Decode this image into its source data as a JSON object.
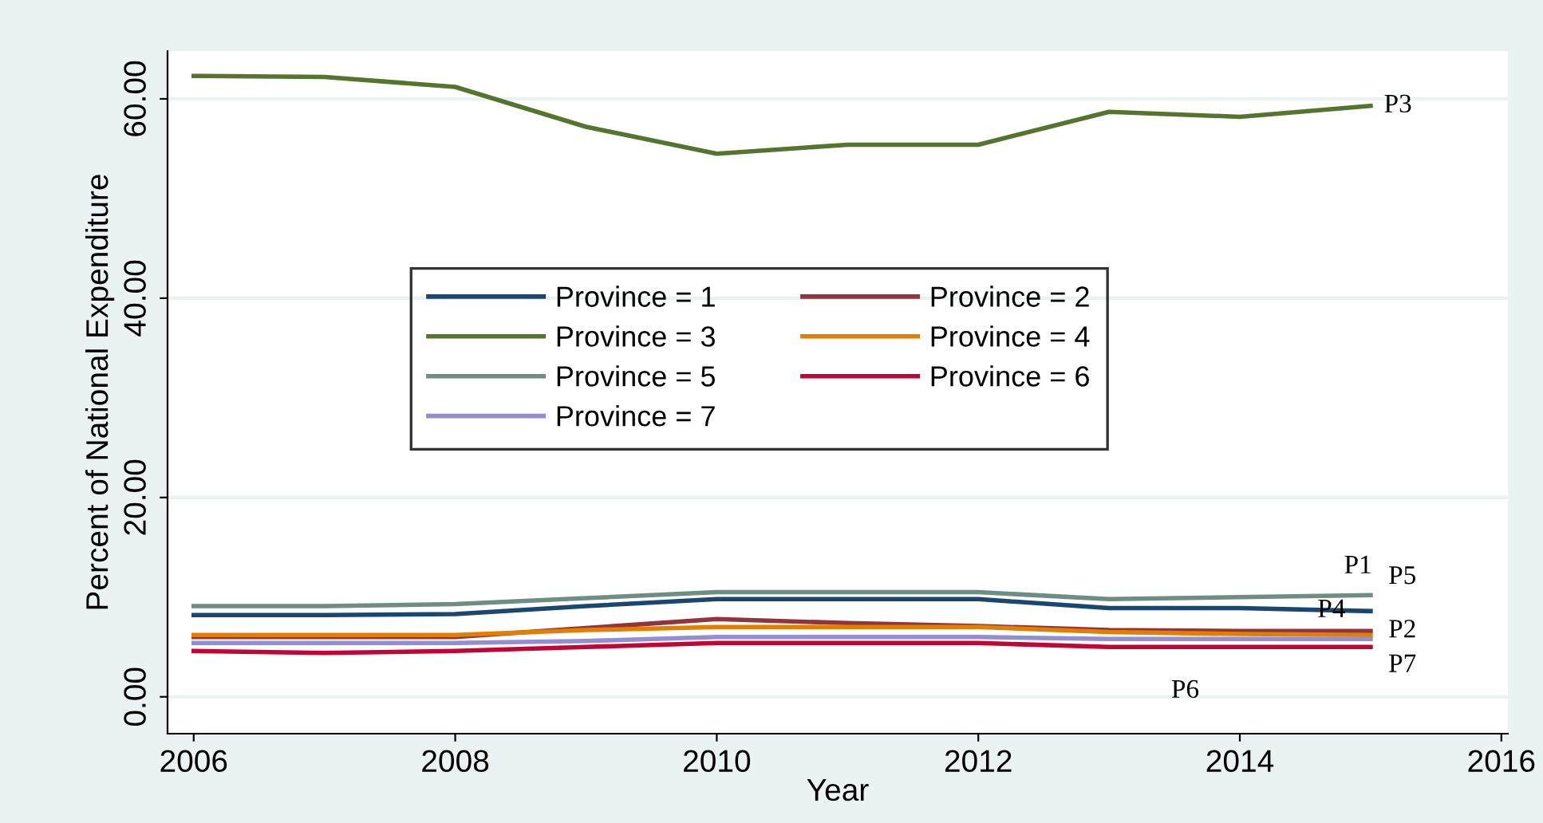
{
  "chart_data": {
    "type": "line",
    "xlabel": "Year",
    "ylabel": "Percent of National Expenditure",
    "x": [
      2006,
      2007,
      2008,
      2009,
      2010,
      2011,
      2012,
      2013,
      2014,
      2015
    ],
    "series": [
      {
        "name": "Province = 1",
        "color": "#1a476f",
        "values": [
          8.2,
          8.2,
          8.3,
          9.1,
          9.8,
          9.8,
          9.8,
          8.9,
          8.9,
          8.6
        ]
      },
      {
        "name": "Province = 2",
        "color": "#90353b",
        "values": [
          6.0,
          6.0,
          6.0,
          6.9,
          7.8,
          7.4,
          7.1,
          6.7,
          6.6,
          6.6
        ]
      },
      {
        "name": "Province = 3",
        "color": "#55752f",
        "values": [
          62.3,
          62.2,
          61.2,
          57.2,
          54.5,
          55.4,
          55.4,
          58.7,
          58.2,
          59.3
        ]
      },
      {
        "name": "Province = 4",
        "color": "#e37e00",
        "values": [
          6.2,
          6.2,
          6.2,
          6.7,
          7.0,
          7.0,
          7.0,
          6.5,
          6.3,
          6.2
        ]
      },
      {
        "name": "Province = 5",
        "color": "#6e8e84",
        "values": [
          9.1,
          9.1,
          9.3,
          9.9,
          10.5,
          10.5,
          10.5,
          9.8,
          10.0,
          10.2
        ]
      },
      {
        "name": "Province = 6",
        "color": "#c10534",
        "values": [
          4.6,
          4.4,
          4.6,
          5.0,
          5.4,
          5.4,
          5.4,
          5.0,
          5.0,
          5.0
        ]
      },
      {
        "name": "Province = 7",
        "color": "#938dd2",
        "values": [
          5.4,
          5.4,
          5.4,
          5.6,
          6.0,
          6.0,
          6.0,
          5.8,
          5.8,
          5.8
        ]
      }
    ],
    "xlim": [
      2005.8,
      2016.05
    ],
    "ylim": [
      -3.7,
      64.8
    ],
    "xticks": [
      2006,
      2008,
      2010,
      2012,
      2014,
      2016
    ],
    "yticks": [
      {
        "value": 0,
        "label": "0.00"
      },
      {
        "value": 20,
        "label": "20.00"
      },
      {
        "value": 40,
        "label": "40.00"
      },
      {
        "value": 60,
        "label": "60.00"
      }
    ],
    "grid": "y",
    "legend": "center",
    "marker": "none",
    "line_style": "solid",
    "annotations": [
      "P1",
      "P2",
      "P3",
      "P4",
      "P5",
      "P6",
      "P7"
    ]
  }
}
